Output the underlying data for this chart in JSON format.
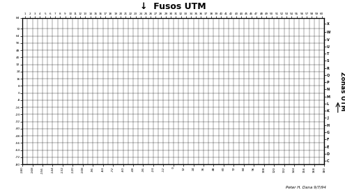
{
  "title": "Fusos UTM",
  "title_fontsize": 9,
  "right_label": "Zonas UTM",
  "credit": "Peter H. Dana 9/7/94",
  "utm_zones": [
    1,
    2,
    3,
    4,
    5,
    6,
    7,
    8,
    9,
    10,
    11,
    12,
    13,
    14,
    15,
    16,
    17,
    18,
    19,
    20,
    21,
    22,
    23,
    24,
    25,
    26,
    27,
    28,
    29,
    30,
    31,
    32,
    33,
    34,
    35,
    36,
    37,
    38,
    39,
    40,
    41,
    42,
    43,
    44,
    45,
    46,
    47,
    48,
    49,
    50,
    51,
    52,
    53,
    54,
    55,
    56,
    57,
    58,
    59,
    60
  ],
  "lat_bands": [
    "C",
    "D",
    "E",
    "F",
    "G",
    "H",
    "J",
    "K",
    "L",
    "M",
    "N",
    "P",
    "Q",
    "R",
    "S",
    "T",
    "U",
    "V",
    "W",
    "X"
  ],
  "lat_band_lats": [
    -80,
    -72,
    -64,
    -56,
    -48,
    -40,
    -32,
    -24,
    -16,
    -8,
    0,
    8,
    16,
    24,
    32,
    40,
    48,
    56,
    64,
    72
  ],
  "lat_ticks": [
    -80,
    -72,
    -64,
    -56,
    -48,
    -40,
    -32,
    -24,
    -16,
    -8,
    0,
    8,
    16,
    24,
    32,
    40,
    48,
    56,
    64,
    72,
    84
  ],
  "lon_ticks": [
    -180,
    -168,
    -156,
    -144,
    -132,
    -120,
    -108,
    -96,
    -84,
    -72,
    -60,
    -48,
    -36,
    -24,
    -12,
    0,
    12,
    24,
    36,
    48,
    60,
    72,
    84,
    96,
    108,
    120,
    132,
    144,
    156,
    168,
    180
  ],
  "xlim": [
    -180,
    180
  ],
  "ylim": [
    -80,
    84
  ],
  "grid_lon_step": 6,
  "grid_lat_step": 8,
  "background_color": "#ffffff",
  "grid_color": "#000000",
  "coast_color": "#000000",
  "down_arrow": "↓"
}
